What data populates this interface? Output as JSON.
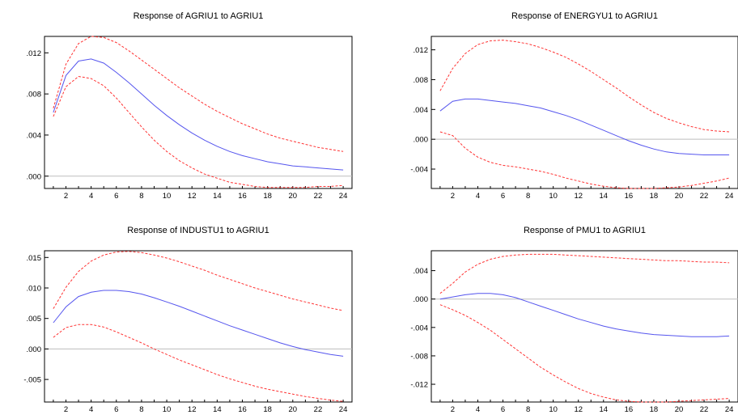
{
  "chart_data": [
    {
      "type": "line",
      "title": "Response of AGRIU1 to AGRIU1",
      "x": [
        1,
        2,
        3,
        4,
        5,
        6,
        7,
        8,
        9,
        10,
        11,
        12,
        13,
        14,
        15,
        16,
        17,
        18,
        19,
        20,
        21,
        22,
        23,
        24
      ],
      "xticks": [
        "2",
        "4",
        "6",
        "8",
        "10",
        "12",
        "14",
        "16",
        "18",
        "20",
        "22",
        "24"
      ],
      "xlim": [
        0.3,
        24.7
      ],
      "ylim": [
        -0.0012,
        0.0136
      ],
      "yticks": [
        0.012,
        0.008,
        0.004,
        0.0
      ],
      "ytick_labels": [
        ".012",
        ".008",
        ".004",
        ".000"
      ],
      "zero_line": true,
      "series": [
        {
          "role": "response",
          "color": "#5555ee",
          "dashed": false,
          "values": [
            0.0062,
            0.0098,
            0.0112,
            0.0114,
            0.011,
            0.0101,
            0.0091,
            0.008,
            0.0069,
            0.0059,
            0.005,
            0.0042,
            0.0035,
            0.0029,
            0.0024,
            0.002,
            0.0017,
            0.0014,
            0.0012,
            0.001,
            0.0009,
            0.0008,
            0.0007,
            0.0006
          ]
        },
        {
          "role": "upper band",
          "color": "#ff3333",
          "dashed": true,
          "values": [
            0.0066,
            0.0109,
            0.0129,
            0.0136,
            0.0135,
            0.013,
            0.0122,
            0.0113,
            0.0104,
            0.0095,
            0.0086,
            0.0078,
            0.007,
            0.0063,
            0.0057,
            0.0051,
            0.0046,
            0.0041,
            0.0037,
            0.0034,
            0.0031,
            0.0028,
            0.0026,
            0.0024
          ]
        },
        {
          "role": "lower band",
          "color": "#ff3333",
          "dashed": true,
          "values": [
            0.0058,
            0.0087,
            0.0097,
            0.0095,
            0.0088,
            0.0076,
            0.0062,
            0.0048,
            0.0035,
            0.0024,
            0.0015,
            0.0008,
            0.0002,
            -0.0002,
            -0.0006,
            -0.0008,
            -0.001,
            -0.0011,
            -0.0011,
            -0.0011,
            -0.0011,
            -0.001,
            -0.001,
            -0.0009
          ]
        }
      ]
    },
    {
      "type": "line",
      "title": "Response of ENERGYU1 to AGRIU1",
      "x": [
        1,
        2,
        3,
        4,
        5,
        6,
        7,
        8,
        9,
        10,
        11,
        12,
        13,
        14,
        15,
        16,
        17,
        18,
        19,
        20,
        21,
        22,
        23,
        24
      ],
      "xticks": [
        "2",
        "4",
        "6",
        "8",
        "10",
        "12",
        "14",
        "16",
        "18",
        "20",
        "22",
        "24"
      ],
      "xlim": [
        0.3,
        24.7
      ],
      "ylim": [
        -0.0066,
        0.0138
      ],
      "yticks": [
        0.012,
        0.008,
        0.004,
        0.0,
        -0.004
      ],
      "ytick_labels": [
        ".012",
        ".008",
        ".004",
        ".000",
        "-.004"
      ],
      "zero_line": true,
      "series": [
        {
          "role": "response",
          "color": "#5555ee",
          "dashed": false,
          "values": [
            0.0038,
            0.0051,
            0.0054,
            0.0054,
            0.0052,
            0.005,
            0.0048,
            0.0045,
            0.0042,
            0.0037,
            0.0032,
            0.0026,
            0.0019,
            0.0012,
            0.0005,
            -0.0002,
            -0.0008,
            -0.0013,
            -0.0017,
            -0.0019,
            -0.002,
            -0.0021,
            -0.0021,
            -0.0021
          ]
        },
        {
          "role": "upper band",
          "color": "#ff3333",
          "dashed": true,
          "values": [
            0.0065,
            0.0095,
            0.0115,
            0.0127,
            0.0132,
            0.0133,
            0.0131,
            0.0128,
            0.0123,
            0.0117,
            0.011,
            0.0101,
            0.0091,
            0.008,
            0.0069,
            0.0057,
            0.0046,
            0.0036,
            0.0028,
            0.0022,
            0.0017,
            0.0013,
            0.0011,
            0.001
          ]
        },
        {
          "role": "lower band",
          "color": "#ff3333",
          "dashed": true,
          "values": [
            0.001,
            0.0005,
            -0.0012,
            -0.0024,
            -0.0031,
            -0.0035,
            -0.0037,
            -0.004,
            -0.0043,
            -0.0047,
            -0.0052,
            -0.0056,
            -0.006,
            -0.0063,
            -0.0065,
            -0.0066,
            -0.0066,
            -0.0066,
            -0.0065,
            -0.0064,
            -0.0062,
            -0.0059,
            -0.0056,
            -0.0052
          ]
        }
      ]
    },
    {
      "type": "line",
      "title": "Response of INDUSTU1 to AGRIU1",
      "x": [
        1,
        2,
        3,
        4,
        5,
        6,
        7,
        8,
        9,
        10,
        11,
        12,
        13,
        14,
        15,
        16,
        17,
        18,
        19,
        20,
        21,
        22,
        23,
        24
      ],
      "xticks": [
        "2",
        "4",
        "6",
        "8",
        "10",
        "12",
        "14",
        "16",
        "18",
        "20",
        "22",
        "24"
      ],
      "xlim": [
        0.3,
        24.7
      ],
      "ylim": [
        -0.0087,
        0.0161
      ],
      "yticks": [
        0.015,
        0.01,
        0.005,
        0.0,
        -0.005
      ],
      "ytick_labels": [
        ".015",
        ".010",
        ".005",
        ".000",
        "-.005"
      ],
      "zero_line": true,
      "series": [
        {
          "role": "response",
          "color": "#5555ee",
          "dashed": false,
          "values": [
            0.0043,
            0.0069,
            0.0086,
            0.0093,
            0.0096,
            0.0096,
            0.0094,
            0.009,
            0.0084,
            0.0077,
            0.007,
            0.0062,
            0.0054,
            0.0046,
            0.0038,
            0.0031,
            0.0024,
            0.0017,
            0.001,
            0.0004,
            -0.0001,
            -0.0005,
            -0.0009,
            -0.0012
          ]
        },
        {
          "role": "upper band",
          "color": "#ff3333",
          "dashed": true,
          "values": [
            0.0066,
            0.0101,
            0.0127,
            0.0144,
            0.0154,
            0.0159,
            0.016,
            0.0158,
            0.0154,
            0.0149,
            0.0143,
            0.0136,
            0.0129,
            0.0121,
            0.0114,
            0.0107,
            0.01,
            0.0094,
            0.0088,
            0.0082,
            0.0077,
            0.0072,
            0.0067,
            0.0063
          ]
        },
        {
          "role": "lower band",
          "color": "#ff3333",
          "dashed": true,
          "values": [
            0.0019,
            0.0035,
            0.004,
            0.004,
            0.0036,
            0.0028,
            0.0019,
            0.001,
            0.0,
            -0.0009,
            -0.0018,
            -0.0026,
            -0.0034,
            -0.0042,
            -0.0049,
            -0.0055,
            -0.0061,
            -0.0066,
            -0.007,
            -0.0074,
            -0.0078,
            -0.0081,
            -0.0084,
            -0.0086
          ]
        }
      ]
    },
    {
      "type": "line",
      "title": "Response of PMU1 to AGRIU1",
      "x": [
        1,
        2,
        3,
        4,
        5,
        6,
        7,
        8,
        9,
        10,
        11,
        12,
        13,
        14,
        15,
        16,
        17,
        18,
        19,
        20,
        21,
        22,
        23,
        24
      ],
      "xticks": [
        "2",
        "4",
        "6",
        "8",
        "10",
        "12",
        "14",
        "16",
        "18",
        "20",
        "22",
        "24"
      ],
      "xlim": [
        0.3,
        24.7
      ],
      "ylim": [
        -0.0145,
        0.0068
      ],
      "yticks": [
        0.004,
        0.0,
        -0.004,
        -0.008,
        -0.012
      ],
      "ytick_labels": [
        ".004",
        ".000",
        "-.004",
        "-.008",
        "-.012"
      ],
      "zero_line": true,
      "series": [
        {
          "role": "response",
          "color": "#5555ee",
          "dashed": false,
          "values": [
            0.0,
            0.0003,
            0.0006,
            0.0008,
            0.0008,
            0.0006,
            0.0002,
            -0.0004,
            -0.001,
            -0.0016,
            -0.0022,
            -0.0028,
            -0.0033,
            -0.0038,
            -0.0042,
            -0.0045,
            -0.0048,
            -0.005,
            -0.0051,
            -0.0052,
            -0.0053,
            -0.0053,
            -0.0053,
            -0.0052
          ]
        },
        {
          "role": "upper band",
          "color": "#ff3333",
          "dashed": true,
          "values": [
            0.0008,
            0.0022,
            0.0038,
            0.0049,
            0.0056,
            0.006,
            0.0062,
            0.0063,
            0.0063,
            0.0063,
            0.0062,
            0.0061,
            0.006,
            0.0059,
            0.0058,
            0.0057,
            0.0056,
            0.0055,
            0.0054,
            0.0054,
            0.0053,
            0.0052,
            0.0052,
            0.0051
          ]
        },
        {
          "role": "lower band",
          "color": "#ff3333",
          "dashed": true,
          "values": [
            -0.0008,
            -0.0015,
            -0.0023,
            -0.0033,
            -0.0044,
            -0.0057,
            -0.007,
            -0.0083,
            -0.0096,
            -0.0107,
            -0.0117,
            -0.0126,
            -0.0133,
            -0.0138,
            -0.0142,
            -0.0144,
            -0.0145,
            -0.0145,
            -0.0145,
            -0.0144,
            -0.0143,
            -0.0142,
            -0.0141,
            -0.014
          ]
        }
      ]
    }
  ]
}
